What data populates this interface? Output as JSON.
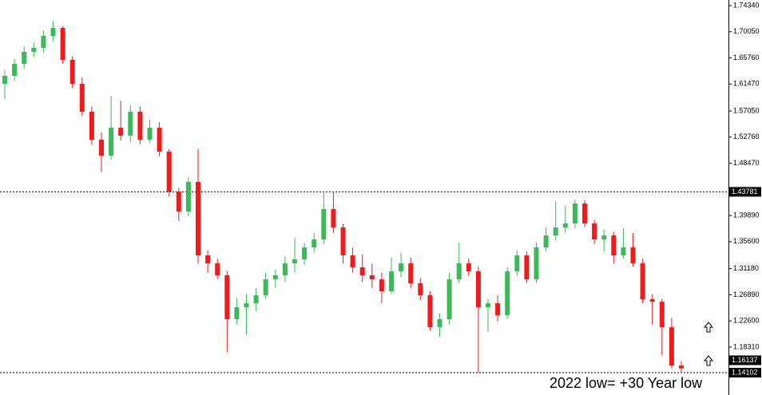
{
  "chart_data": {
    "type": "candlestick",
    "annotation": "2022 low= +30 Year low",
    "up_color": "#3cb95a",
    "down_color": "#f21a1a",
    "ylim": [
      1.1044,
      1.7526
    ],
    "yticks": [
      {
        "value": 1.7434,
        "label": "1.74340"
      },
      {
        "value": 1.7005,
        "label": "1.70050"
      },
      {
        "value": 1.6576,
        "label": "1.65760"
      },
      {
        "value": 1.6147,
        "label": "1.61470"
      },
      {
        "value": 1.5705,
        "label": "1.57050"
      },
      {
        "value": 1.5276,
        "label": "1.52760"
      },
      {
        "value": 1.4847,
        "label": "1.48470"
      },
      {
        "value": 1.3989,
        "label": "1.39890"
      },
      {
        "value": 1.356,
        "label": "1.35600"
      },
      {
        "value": 1.3118,
        "label": "1.31180"
      },
      {
        "value": 1.2689,
        "label": "1.26890"
      },
      {
        "value": 1.226,
        "label": "1.22600"
      },
      {
        "value": 1.1831,
        "label": "1.18310"
      }
    ],
    "price_lines": [
      {
        "value": 1.43781,
        "label": "1.43781",
        "line": true
      },
      {
        "value": 1.16137,
        "label": "1.16137",
        "line": false
      },
      {
        "value": 1.14102,
        "label": "1.14102",
        "line": true
      }
    ],
    "candles": [
      [
        1.615,
        1.638,
        1.59,
        1.6282
      ],
      [
        1.6282,
        1.656,
        1.62,
        1.6478
      ],
      [
        1.6478,
        1.676,
        1.64,
        1.6674
      ],
      [
        1.6674,
        1.683,
        1.659,
        1.674
      ],
      [
        1.674,
        1.702,
        1.666,
        1.6936
      ],
      [
        1.6936,
        1.718,
        1.685,
        1.7067
      ],
      [
        1.7067,
        1.71,
        1.648,
        1.6544
      ],
      [
        1.6544,
        1.66,
        1.608,
        1.6151
      ],
      [
        1.6151,
        1.625,
        1.562,
        1.5692
      ],
      [
        1.5692,
        1.578,
        1.515,
        1.5234
      ],
      [
        1.5234,
        1.535,
        1.47,
        1.4972
      ],
      [
        1.4972,
        1.595,
        1.49,
        1.543
      ],
      [
        1.543,
        1.587,
        1.522,
        1.5299
      ],
      [
        1.5299,
        1.58,
        1.52,
        1.5692
      ],
      [
        1.5692,
        1.578,
        1.516,
        1.5234
      ],
      [
        1.5234,
        1.556,
        1.518,
        1.543
      ],
      [
        1.543,
        1.552,
        1.496,
        1.5037
      ],
      [
        1.5037,
        1.508,
        1.43,
        1.4383
      ],
      [
        1.4383,
        1.444,
        1.39,
        1.4055
      ],
      [
        1.4055,
        1.462,
        1.398,
        1.454
      ],
      [
        1.454,
        1.508,
        1.32,
        1.3335
      ],
      [
        1.3335,
        1.342,
        1.305,
        1.3204
      ],
      [
        1.3204,
        1.328,
        1.295,
        1.3008
      ],
      [
        1.3008,
        1.308,
        1.175,
        1.2287
      ],
      [
        1.2287,
        1.264,
        1.22,
        1.2484
      ],
      [
        1.2484,
        1.27,
        1.204,
        1.2549
      ],
      [
        1.2549,
        1.28,
        1.242,
        1.268
      ],
      [
        1.268,
        1.305,
        1.262,
        1.2942
      ],
      [
        1.2942,
        1.31,
        1.28,
        1.3008
      ],
      [
        1.3008,
        1.332,
        1.29,
        1.3204
      ],
      [
        1.3204,
        1.362,
        1.305,
        1.327
      ],
      [
        1.327,
        1.354,
        1.318,
        1.3466
      ],
      [
        1.3466,
        1.37,
        1.338,
        1.3597
      ],
      [
        1.3597,
        1.438,
        1.352,
        1.4095
      ],
      [
        1.4095,
        1.438,
        1.37,
        1.3793
      ],
      [
        1.3793,
        1.385,
        1.32,
        1.3335
      ],
      [
        1.3335,
        1.346,
        1.305,
        1.3139
      ],
      [
        1.3139,
        1.335,
        1.29,
        1.3008
      ],
      [
        1.3008,
        1.32,
        1.28,
        1.2942
      ],
      [
        1.2942,
        1.305,
        1.255,
        1.2746
      ],
      [
        1.2746,
        1.33,
        1.27,
        1.3073
      ],
      [
        1.3073,
        1.338,
        1.298,
        1.3204
      ],
      [
        1.3204,
        1.33,
        1.28,
        1.2877
      ],
      [
        1.2877,
        1.296,
        1.26,
        1.268
      ],
      [
        1.268,
        1.275,
        1.21,
        1.2156
      ],
      [
        1.2156,
        1.238,
        1.2,
        1.2287
      ],
      [
        1.2287,
        1.305,
        1.22,
        1.2942
      ],
      [
        1.2942,
        1.355,
        1.288,
        1.3204
      ],
      [
        1.3204,
        1.328,
        1.3,
        1.3073
      ],
      [
        1.3073,
        1.315,
        1.141,
        1.2484
      ],
      [
        1.2484,
        1.262,
        1.208,
        1.2549
      ],
      [
        1.2549,
        1.268,
        1.225,
        1.2353
      ],
      [
        1.2353,
        1.314,
        1.23,
        1.3073
      ],
      [
        1.3073,
        1.342,
        1.3,
        1.3335
      ],
      [
        1.3335,
        1.34,
        1.288,
        1.2942
      ],
      [
        1.2942,
        1.355,
        1.288,
        1.3466
      ],
      [
        1.3466,
        1.38,
        1.34,
        1.3662
      ],
      [
        1.3662,
        1.422,
        1.358,
        1.3793
      ],
      [
        1.3793,
        1.415,
        1.37,
        1.3859
      ],
      [
        1.3859,
        1.425,
        1.378,
        1.4186
      ],
      [
        1.4186,
        1.424,
        1.38,
        1.3859
      ],
      [
        1.3859,
        1.392,
        1.352,
        1.3597
      ],
      [
        1.3597,
        1.376,
        1.34,
        1.3662
      ],
      [
        1.3662,
        1.372,
        1.32,
        1.3335
      ],
      [
        1.3335,
        1.378,
        1.328,
        1.3466
      ],
      [
        1.3466,
        1.37,
        1.315,
        1.3204
      ],
      [
        1.3204,
        1.328,
        1.255,
        1.2615
      ],
      [
        1.2615,
        1.27,
        1.22,
        1.2575
      ],
      [
        1.2575,
        1.262,
        1.17,
        1.2156
      ],
      [
        1.2156,
        1.231,
        1.148,
        1.1527
      ],
      [
        1.1527,
        1.16,
        1.141,
        1.148
      ]
    ]
  }
}
